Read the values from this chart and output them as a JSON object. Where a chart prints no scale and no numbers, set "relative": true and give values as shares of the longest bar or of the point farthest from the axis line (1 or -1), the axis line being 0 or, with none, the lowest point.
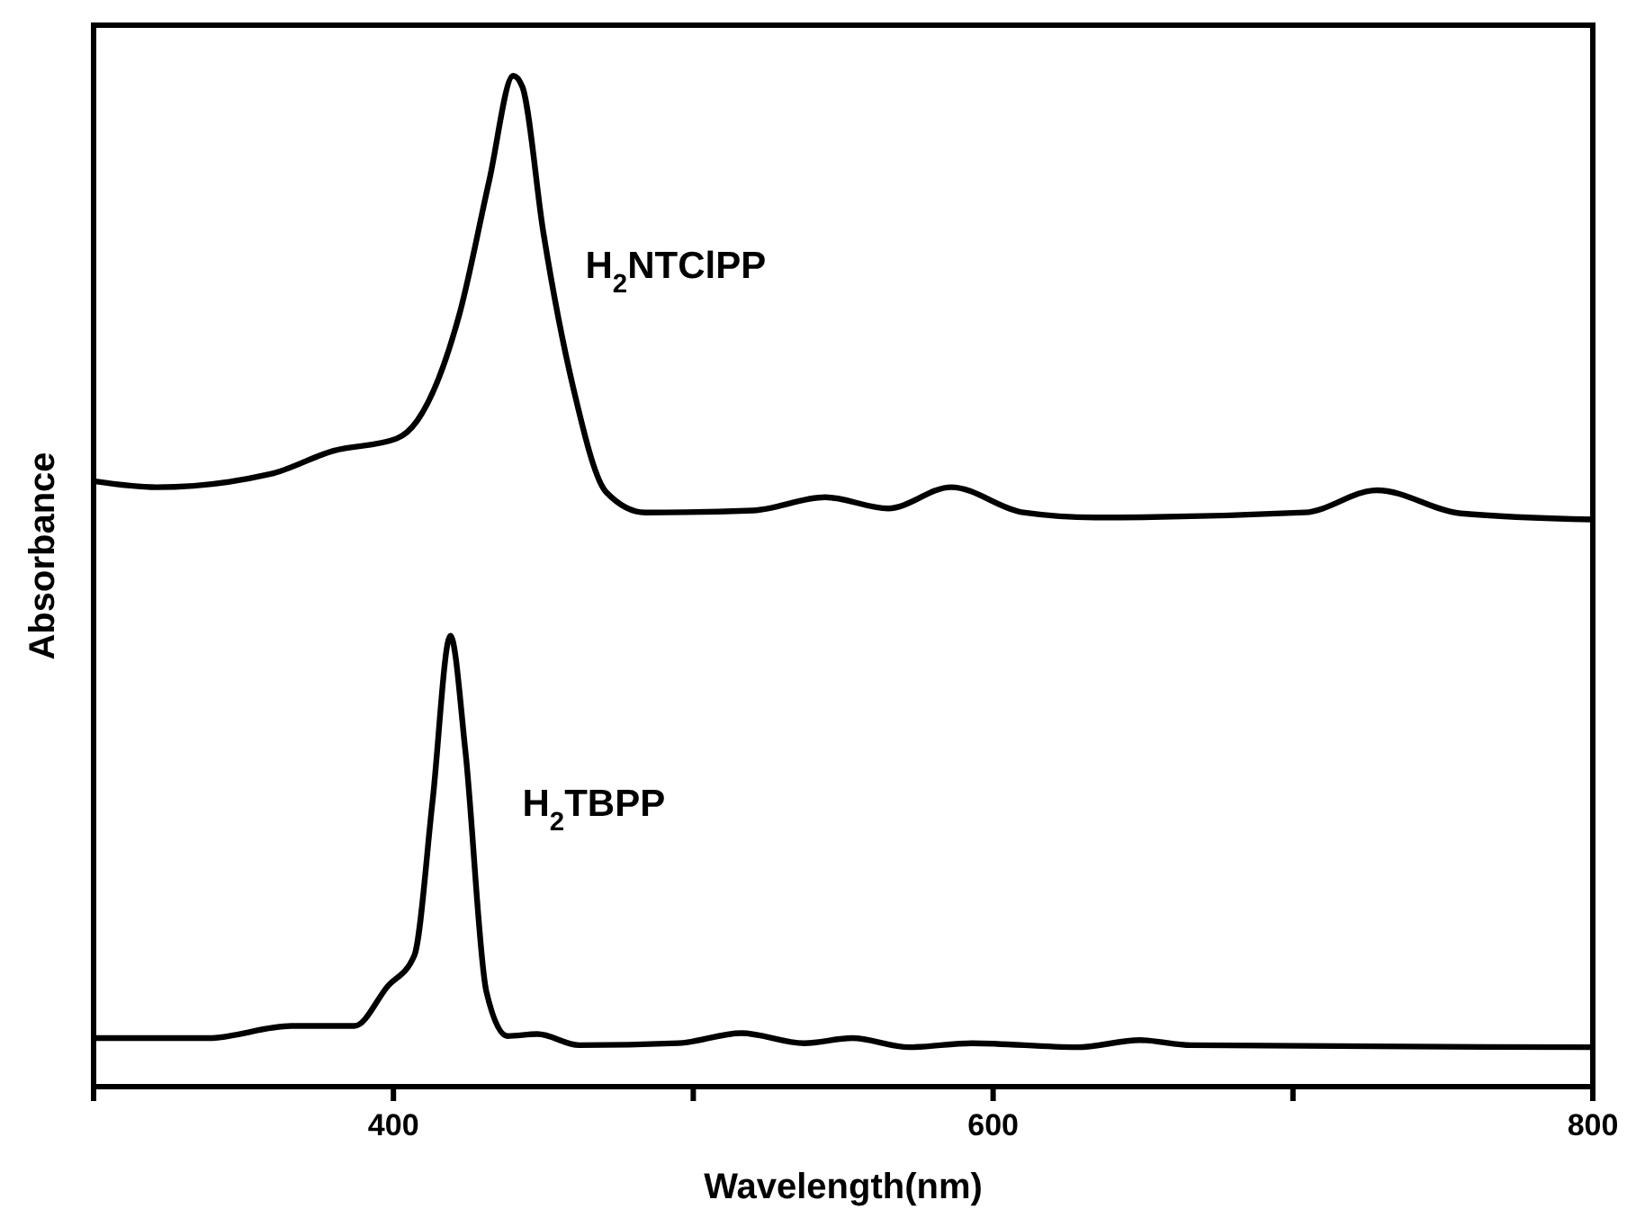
{
  "chart_data": {
    "type": "line",
    "relative": true,
    "xlabel": "Wavelength(nm)",
    "ylabel": "Absorbance",
    "xlim": [
      300,
      800
    ],
    "xticks": [
      {
        "value": 300,
        "label": null
      },
      400,
      {
        "value": 500,
        "label": null
      },
      600,
      {
        "value": 700,
        "label": null
      },
      800
    ],
    "grid": false,
    "marker": "none",
    "line_style": "solid",
    "series": [
      {
        "name": "H$_{2}$NTClPP",
        "color": "#000000",
        "x": [
          300,
          321,
          359,
          380,
          401,
          408,
          422,
          432,
          440,
          443,
          450,
          460,
          471,
          484,
          520,
          544,
          565,
          586,
          610,
          634,
          704,
          728,
          756,
          800
        ],
        "values": [
          0.599,
          0.593,
          0.606,
          0.629,
          0.641,
          0.659,
          0.764,
          0.897,
          1,
          0.989,
          0.845,
          0.691,
          0.588,
          0.568,
          0.57,
          0.583,
          0.572,
          0.593,
          0.568,
          0.563,
          0.568,
          0.59,
          0.567,
          0.561
        ]
      },
      {
        "name": "H$_{2}$TBPP",
        "color": "#000000",
        "x": [
          300,
          338,
          366,
          387,
          398,
          407,
          413,
          419,
          424,
          431,
          438,
          448,
          462,
          495,
          516,
          537,
          553,
          572,
          593,
          628,
          649,
          666,
          800
        ],
        "values": [
          0.048,
          0.048,
          0.06,
          0.06,
          0.099,
          0.13,
          0.281,
          0.446,
          0.332,
          0.094,
          0.05,
          0.052,
          0.041,
          0.043,
          0.053,
          0.043,
          0.048,
          0.039,
          0.043,
          0.039,
          0.046,
          0.041,
          0.039
        ]
      }
    ]
  }
}
